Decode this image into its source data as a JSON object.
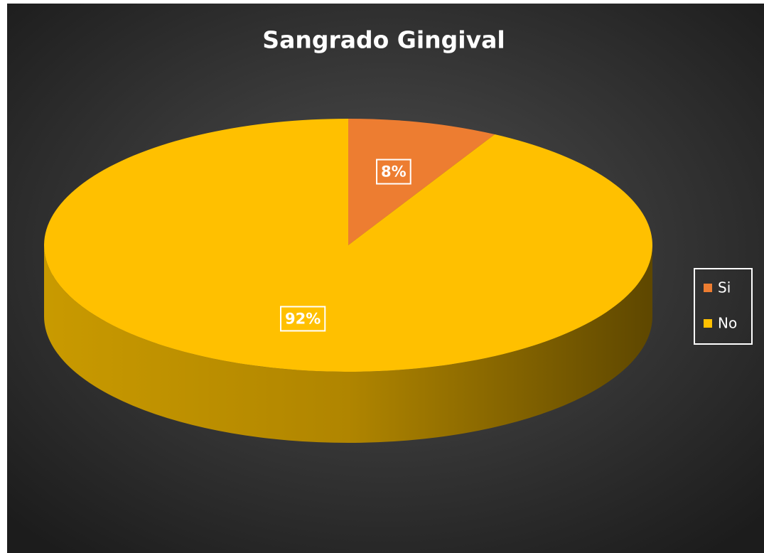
{
  "chart_data": {
    "type": "pie",
    "title": "Sangrado Gingival",
    "categories": [
      "Si",
      "No"
    ],
    "values": [
      8,
      92
    ],
    "value_labels": [
      "8%",
      "92%"
    ],
    "colors": [
      "#ed7d31",
      "#ffc000"
    ],
    "legend": "right"
  }
}
